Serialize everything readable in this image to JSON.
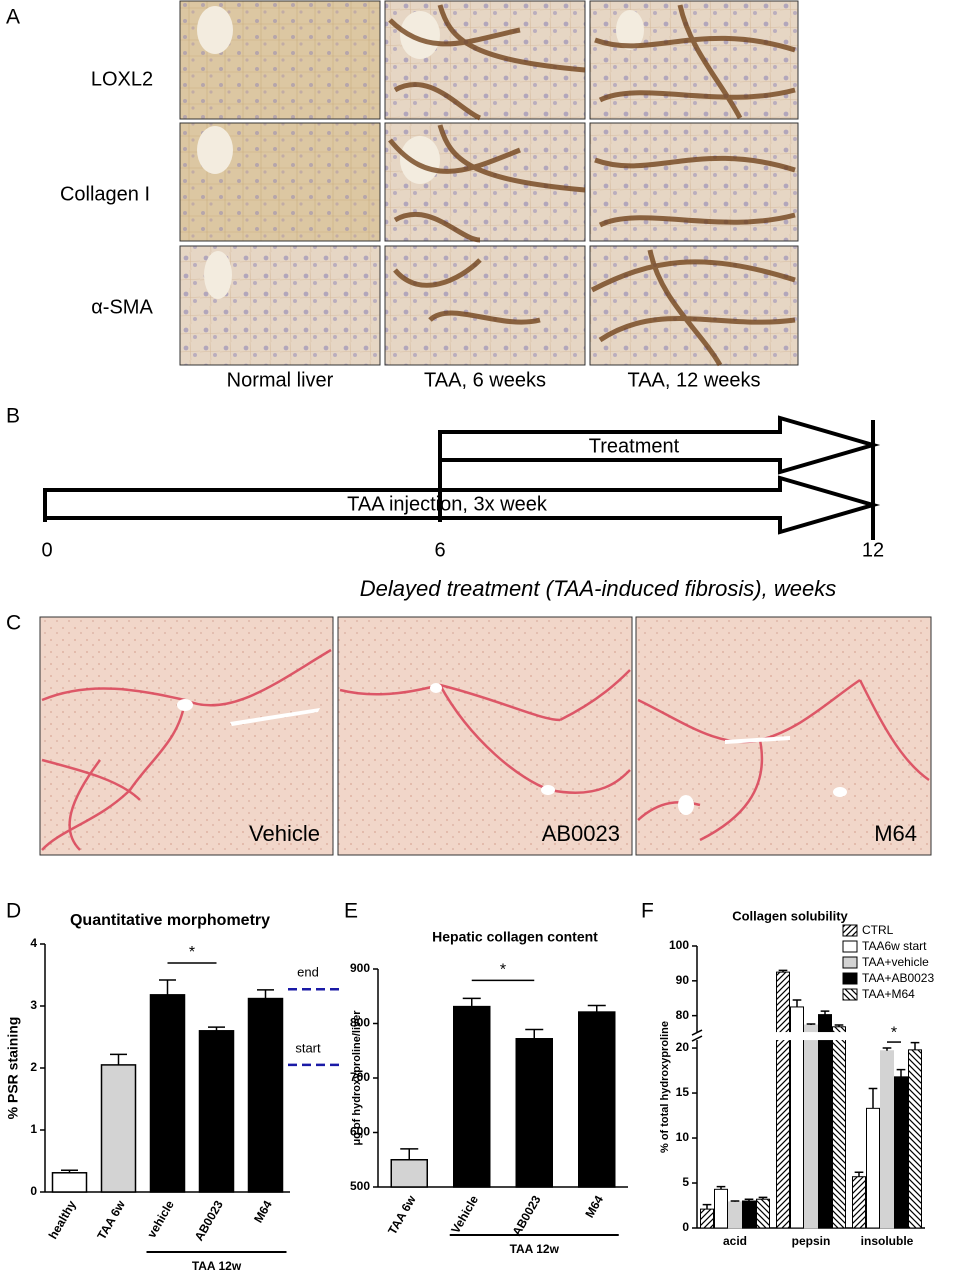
{
  "panels": {
    "a": {
      "label": "A",
      "rows": [
        "LOXL2",
        "Collagen I",
        "α-SMA"
      ],
      "columns": [
        "Normal liver",
        "TAA, 6 weeks",
        "TAA, 12 weeks"
      ]
    },
    "b": {
      "label": "B",
      "treatment": "Treatment",
      "injection": "TAA injection, 3x week",
      "ticks": [
        0,
        6,
        12
      ],
      "caption": "Delayed treatment (TAA-induced fibrosis), weeks"
    },
    "c": {
      "label": "C",
      "images": [
        "Vehicle",
        "AB0023",
        "M64"
      ]
    },
    "d": {
      "label": "D"
    },
    "e": {
      "label": "E"
    },
    "f": {
      "label": "F"
    }
  },
  "chart_data": [
    {
      "type": "bar",
      "title": "Quantitative morphometry",
      "y_label": "% PSR staining",
      "categories": [
        "healthy",
        "TAA 6w",
        "vehicle",
        "AB0023",
        "M64"
      ],
      "values": [
        0.31,
        2.05,
        3.18,
        2.6,
        3.12
      ],
      "errors": [
        0.04,
        0.17,
        0.24,
        0.06,
        0.14
      ],
      "colors": [
        "#ffffff",
        "#d3d3d3",
        "#000000",
        "#000000",
        "#000000"
      ],
      "ylim": [
        0,
        4
      ],
      "yticks": [
        0,
        1,
        2,
        3,
        4
      ],
      "group_label": "TAA 12w",
      "annotation": "*",
      "reference_lines": [
        {
          "label": "end",
          "value": 3.27,
          "color": "#1a1aa6"
        },
        {
          "label": "start",
          "value": 2.05,
          "color": "#1a1aa6"
        }
      ]
    },
    {
      "type": "bar",
      "title": "Hepatic collagen content",
      "y_label": "μg of hydroxyproline/liver",
      "categories": [
        "TAA 6w",
        "Vehicle",
        "AB0023",
        "M64"
      ],
      "values": [
        550,
        831,
        772,
        821
      ],
      "errors": [
        20,
        15,
        17,
        12
      ],
      "colors": [
        "#d3d3d3",
        "#000000",
        "#000000",
        "#000000"
      ],
      "ylim": [
        500,
        900
      ],
      "yticks": [
        500,
        600,
        700,
        800,
        900
      ],
      "group_label": "TAA 12w",
      "annotation": "*"
    },
    {
      "type": "grouped_bar",
      "title": "Collagen solubility",
      "y_label": "% of total hydroxyproline",
      "categories": [
        "acid",
        "pepsin",
        "insoluble"
      ],
      "series": [
        {
          "name": "CTRL",
          "color": "#000000",
          "hatch": "up",
          "values": [
            2.1,
            92.5,
            5.7
          ],
          "errors": [
            0.5,
            0.5,
            0.5
          ]
        },
        {
          "name": "TAA6w start",
          "color": "#ffffff",
          "values": [
            4.3,
            82.5,
            13.3
          ],
          "errors": [
            0.3,
            2,
            2.2
          ]
        },
        {
          "name": "TAA+vehicle",
          "color": "#d3d3d3",
          "values": [
            2.9,
            77.3,
            19.7
          ],
          "errors": [
            0.1,
            0.3,
            0.3
          ]
        },
        {
          "name": "TAA+AB0023",
          "color": "#000000",
          "values": [
            3.0,
            80.3,
            16.8
          ],
          "errors": [
            0.2,
            1,
            0.8
          ]
        },
        {
          "name": "TAA+M64",
          "color": "#000000",
          "hatch": "down",
          "values": [
            3.2,
            76.8,
            19.8
          ],
          "errors": [
            0.2,
            0.5,
            0.8
          ]
        }
      ],
      "ylim": [
        0,
        100
      ],
      "ybreak": [
        21,
        75
      ],
      "yticks": [
        0,
        5,
        10,
        15,
        20,
        80,
        90,
        100
      ],
      "annotation": "*",
      "legend": "upper right"
    }
  ]
}
